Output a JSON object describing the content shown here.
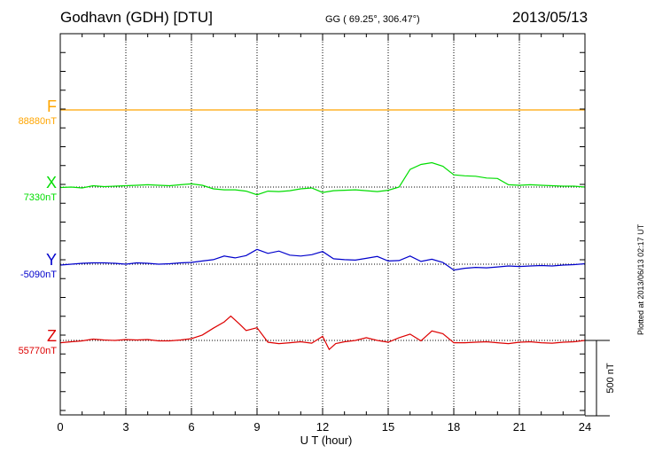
{
  "header": {
    "station": "Godhavn (GDH)  [DTU]",
    "coords": "GG ( 69.25°, 306.47°)",
    "date": "2013/05/13"
  },
  "stamp": "Plotted at 2013/06/13 02:17 UT",
  "scale_label": "500 nT",
  "chart_data": {
    "type": "line",
    "title": "Godhavn (GDH)  [DTU]",
    "xlabel": "U T (hour)",
    "ylabel": "",
    "xlim": [
      0,
      24
    ],
    "xticks": [
      0,
      3,
      6,
      9,
      12,
      15,
      18,
      21,
      24
    ],
    "tick_labels": [
      "0",
      "3",
      "6",
      "9",
      "12",
      "15",
      "18",
      "21",
      "24"
    ],
    "grid": true,
    "scale_nT_per_bar": 500,
    "series": [
      {
        "name": "F",
        "baseline_label": "88880nT",
        "baseline": 88880,
        "color": "#ffa500",
        "x": [
          0,
          24
        ],
        "values": [
          88880,
          88880
        ]
      },
      {
        "name": "X",
        "baseline_label": "7330nT",
        "baseline": 7330,
        "color": "#00dd00",
        "x": [
          0,
          0.5,
          1,
          1.5,
          2,
          2.5,
          3,
          3.5,
          4,
          4.5,
          5,
          5.5,
          6,
          6.5,
          7,
          7.5,
          8,
          8.5,
          9,
          9.5,
          10,
          10.5,
          11,
          11.5,
          12,
          12.5,
          13,
          13.5,
          14,
          14.5,
          15,
          15.5,
          16,
          16.5,
          17,
          17.5,
          18,
          18.5,
          19,
          19.5,
          20,
          20.5,
          21,
          21.5,
          22,
          22.5,
          23,
          23.5,
          24
        ],
        "values": [
          7327,
          7330,
          7324,
          7339,
          7333,
          7336,
          7339,
          7342,
          7345,
          7342,
          7339,
          7345,
          7351,
          7342,
          7318,
          7312,
          7312,
          7303,
          7279,
          7303,
          7300,
          7306,
          7318,
          7324,
          7294,
          7306,
          7309,
          7312,
          7306,
          7300,
          7309,
          7330,
          7447,
          7480,
          7492,
          7468,
          7411,
          7405,
          7402,
          7390,
          7387,
          7345,
          7342,
          7345,
          7342,
          7339,
          7336,
          7336,
          7330
        ]
      },
      {
        "name": "Y",
        "baseline_label": "-5090nT",
        "baseline": -5090,
        "color": "#0000cc",
        "x": [
          0,
          0.5,
          1,
          1.5,
          2,
          2.5,
          3,
          3.5,
          4,
          4.5,
          5,
          5.5,
          6,
          6.5,
          7,
          7.5,
          8,
          8.5,
          9,
          9.5,
          10,
          10.5,
          11,
          11.5,
          12,
          12.5,
          13,
          13.5,
          14,
          14.5,
          15,
          15.5,
          16,
          16.5,
          17,
          17.5,
          18,
          18.5,
          19,
          19.5,
          20,
          20.5,
          21,
          21.5,
          22,
          22.5,
          23,
          23.5,
          24
        ],
        "values": [
          -5096,
          -5090,
          -5084,
          -5081,
          -5081,
          -5084,
          -5090,
          -5081,
          -5084,
          -5090,
          -5087,
          -5081,
          -5078,
          -5069,
          -5060,
          -5036,
          -5048,
          -5033,
          -4992,
          -5018,
          -5003,
          -5030,
          -5036,
          -5027,
          -5006,
          -5054,
          -5060,
          -5063,
          -5051,
          -5039,
          -5069,
          -5066,
          -5036,
          -5072,
          -5057,
          -5078,
          -5129,
          -5117,
          -5111,
          -5114,
          -5108,
          -5102,
          -5105,
          -5102,
          -5099,
          -5102,
          -5096,
          -5093,
          -5087
        ]
      },
      {
        "name": "Z",
        "baseline_label": "55770nT",
        "baseline": 55770,
        "color": "#dd0000",
        "x": [
          0,
          0.5,
          1,
          1.5,
          2,
          2.5,
          3,
          3.5,
          4,
          4.5,
          5,
          5.5,
          6,
          6.5,
          7,
          7.5,
          7.8,
          8.2,
          8.5,
          9,
          9.5,
          10,
          10.5,
          11,
          11.5,
          12,
          12.3,
          12.6,
          13,
          13.5,
          14,
          14.5,
          15,
          15.5,
          16,
          16.5,
          17,
          17.5,
          18,
          18.5,
          19,
          19.5,
          20,
          20.5,
          21,
          21.5,
          22,
          22.5,
          23,
          23.5,
          24
        ],
        "values": [
          55755,
          55761,
          55767,
          55779,
          55773,
          55770,
          55776,
          55773,
          55776,
          55767,
          55767,
          55773,
          55782,
          55806,
          55851,
          55893,
          55932,
          55878,
          55836,
          55854,
          55758,
          55749,
          55755,
          55761,
          55752,
          55797,
          55710,
          55749,
          55761,
          55770,
          55788,
          55770,
          55758,
          55788,
          55812,
          55767,
          55833,
          55815,
          55755,
          55755,
          55758,
          55761,
          55755,
          55749,
          55758,
          55761,
          55755,
          55752,
          55758,
          55761,
          55770
        ]
      }
    ]
  }
}
